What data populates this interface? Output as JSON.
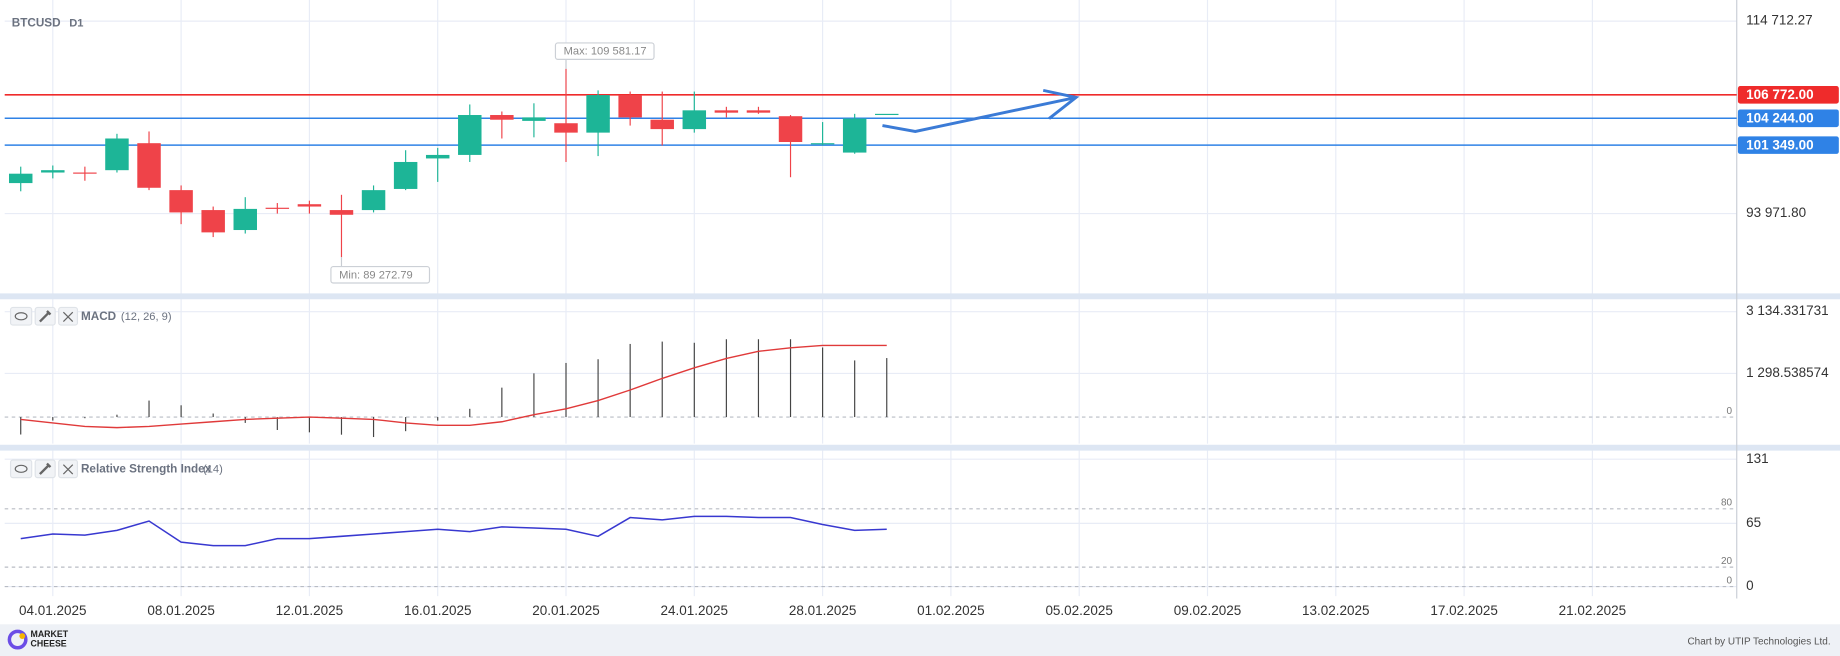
{
  "chart_data": [
    {
      "type": "candlestick",
      "title": "BTCUSD",
      "subtitle": "D1",
      "x": [
        "03.01.2025",
        "04.01.2025",
        "05.01.2025",
        "06.01.2025",
        "07.01.2025",
        "08.01.2025",
        "09.01.2025",
        "10.01.2025",
        "11.01.2025",
        "12.01.2025",
        "13.01.2025",
        "14.01.2025",
        "15.01.2025",
        "16.01.2025",
        "17.01.2025",
        "18.01.2025",
        "19.01.2025",
        "20.01.2025",
        "21.01.2025",
        "22.01.2025",
        "23.01.2025",
        "24.01.2025",
        "25.01.2025",
        "26.01.2025",
        "27.01.2025",
        "28.01.2025",
        "29.01.2025",
        "30.01.2025"
      ],
      "open": [
        97259,
        98397,
        98397,
        98650,
        101559,
        96500,
        94350,
        92200,
        94603,
        94983,
        94350,
        94350,
        96627,
        99915,
        100294,
        104595,
        103962,
        103709,
        102697,
        106744,
        104088,
        103077,
        105100,
        105100,
        104468,
        101433,
        100547,
        104721
      ],
      "high": [
        99030,
        99156,
        99030,
        102571,
        102824,
        97006,
        94730,
        95741,
        95109,
        95362,
        95994,
        97006,
        100800,
        101053,
        105733,
        104974,
        105859,
        109581.17,
        107250,
        107124,
        107124,
        107124,
        105480,
        105480,
        104595,
        103836,
        104721,
        104721
      ],
      "low": [
        96374,
        97765,
        97512,
        98397,
        96500,
        92833,
        91441,
        91821,
        93971,
        93971,
        89272.79,
        94097,
        96500,
        97386,
        99535,
        102065,
        102191,
        99535,
        100168,
        103456,
        101306,
        102697,
        104341,
        104721,
        97891,
        101306,
        100421,
        104721
      ],
      "close": [
        98271,
        98650,
        98271,
        102065,
        96753,
        94097,
        91947,
        94477,
        94477,
        94730,
        93844,
        96500,
        99535,
        100294,
        104595,
        104088,
        104341,
        102697,
        106744,
        104341,
        103077,
        105100,
        104847,
        104847,
        101686,
        101559,
        104215,
        104721
      ],
      "up_color": "#1db597",
      "down_color": "#ef4349",
      "xlim": [
        "03.01.2025",
        "25.02.2025"
      ],
      "ylim": [
        85625,
        116483
      ],
      "yticks": [
        {
          "value": 114712.27,
          "label": "114 712.27"
        },
        {
          "value": 93971.8,
          "label": "93 971.80"
        }
      ],
      "grid": true,
      "hlines": [
        {
          "value": 106772,
          "label": "106 772.00",
          "color": "#ef2b2b"
        },
        {
          "value": 104244,
          "label": "104 244.00",
          "color": "#2f82e6"
        },
        {
          "value": 101349,
          "label": "101 349.00",
          "color": "#2f82e6"
        }
      ],
      "annotations": [
        "Max: 109 581.17",
        "Min: 89 272.79"
      ]
    },
    {
      "type": "macd",
      "title": "MACD",
      "subtitle": "(12, 26, 9)",
      "x": [
        "03.01.2025",
        "04.01.2025",
        "05.01.2025",
        "06.01.2025",
        "07.01.2025",
        "08.01.2025",
        "09.01.2025",
        "10.01.2025",
        "11.01.2025",
        "12.01.2025",
        "13.01.2025",
        "14.01.2025",
        "15.01.2025",
        "16.01.2025",
        "17.01.2025",
        "18.01.2025",
        "19.01.2025",
        "20.01.2025",
        "21.01.2025",
        "22.01.2025",
        "23.01.2025",
        "24.01.2025",
        "25.01.2025",
        "26.01.2025",
        "27.01.2025",
        "28.01.2025",
        "29.01.2025",
        "30.01.2025"
      ],
      "series": [
        {
          "style": "bars",
          "color": "#444444",
          "values": [
            -520,
            -105,
            -35,
            70,
            490,
            350,
            105,
            -175,
            -385,
            -455,
            -525,
            -595,
            -420,
            -105,
            245,
            875,
            1300,
            1610,
            1720,
            2175,
            2245,
            2210,
            2315,
            2315,
            2315,
            2070,
            1685,
            1755
          ]
        },
        {
          "style": "line",
          "color": "#e03a3a",
          "values": [
            -70,
            -175,
            -280,
            -315,
            -280,
            -210,
            -140,
            -70,
            -35,
            0,
            -35,
            -70,
            -175,
            -245,
            -245,
            -140,
            70,
            245,
            490,
            805,
            1150,
            1465,
            1745,
            1955,
            2060,
            2130,
            2130,
            2130
          ]
        }
      ],
      "xlim": [
        "03.01.2025",
        "25.02.2025"
      ],
      "ylim": [
        -650,
        3400
      ],
      "yticks": [
        {
          "value": 3134.331731,
          "label": "3 134.331731"
        },
        {
          "value": 1298.538574,
          "label": "1 298.538574"
        }
      ],
      "levels": [
        0
      ],
      "grid": true
    },
    {
      "type": "rsi",
      "title": "Relative Strength Index",
      "subtitle": "(14)",
      "x": [
        "03.01.2025",
        "04.01.2025",
        "05.01.2025",
        "06.01.2025",
        "07.01.2025",
        "08.01.2025",
        "09.01.2025",
        "10.01.2025",
        "11.01.2025",
        "12.01.2025",
        "13.01.2025",
        "14.01.2025",
        "15.01.2025",
        "16.01.2025",
        "17.01.2025",
        "18.01.2025",
        "19.01.2025",
        "20.01.2025",
        "21.01.2025",
        "22.01.2025",
        "23.01.2025",
        "24.01.2025",
        "25.01.2025",
        "26.01.2025",
        "27.01.2025",
        "28.01.2025",
        "29.01.2025",
        "30.01.2025"
      ],
      "values": [
        49.3,
        54.1,
        52.9,
        57.8,
        67.4,
        45.7,
        42.1,
        42.1,
        49.3,
        49.3,
        51.7,
        54.1,
        56.5,
        59.0,
        56.5,
        61.4,
        60.2,
        59.0,
        51.7,
        71.0,
        68.6,
        72.2,
        72.2,
        71.0,
        71.0,
        63.8,
        57.8,
        59.0
      ],
      "color": "#3838d0",
      "xlim": [
        "03.01.2025",
        "25.02.2025"
      ],
      "ylim": [
        -5,
        135
      ],
      "yticks": [
        131,
        65,
        0
      ],
      "levels": [
        80,
        20,
        0
      ],
      "grid": true,
      "xticks": [
        "04.01.2025",
        "08.01.2025",
        "12.01.2025",
        "16.01.2025",
        "20.01.2025",
        "24.01.2025",
        "28.01.2025",
        "01.02.2025",
        "05.02.2025",
        "09.02.2025",
        "13.02.2025",
        "17.02.2025",
        "21.02.2025"
      ]
    }
  ],
  "footer": {
    "brand": [
      "MARKET",
      "CHEESE"
    ],
    "credit": "Chart by UTIP Technologies Ltd."
  }
}
